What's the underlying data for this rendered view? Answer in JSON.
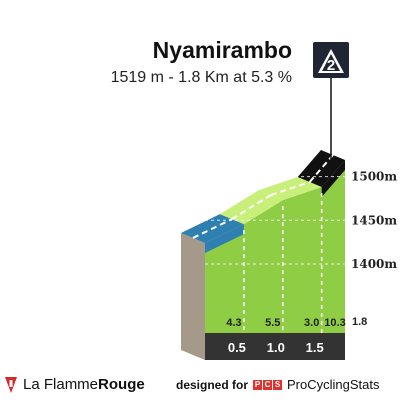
{
  "title": "Nyamirambo",
  "subtitle": "1519 m - 1.8 Km at 5.3 %",
  "badge": {
    "label": "2",
    "color": "#1f2533"
  },
  "colors": {
    "base": "#333333",
    "side": "#a59a8a",
    "top_face": "#c8ef7a",
    "front_green": "#8fcd45",
    "blue": "#2f7fb0",
    "black": "#111111"
  },
  "footer": {
    "brand_prefix": "La Flamme",
    "brand_suffix": "Rouge",
    "credit_label": "designed for",
    "pcs_letters": [
      "P",
      "C",
      "S"
    ],
    "pcs_name": "ProCyclingStats"
  },
  "chart_data": {
    "type": "area",
    "x": [
      0,
      0.5,
      1.0,
      1.5,
      1.8
    ],
    "y_ticks": [
      "1400m",
      "1450m",
      "1500m"
    ],
    "y_tick_values": [
      1400,
      1450,
      1500
    ],
    "ylim": [
      1350,
      1519
    ],
    "xlim": [
      0,
      1.8
    ],
    "segments": [
      {
        "from": 0.0,
        "to": 0.5,
        "gradient": 4.3,
        "label": "4.3",
        "color": "#2f7fb0"
      },
      {
        "from": 0.5,
        "to": 1.0,
        "gradient": 5.5,
        "label": "5.5",
        "color": "#8fcd45"
      },
      {
        "from": 1.0,
        "to": 1.5,
        "gradient": 3.0,
        "label": "3.0",
        "color": "#8fcd45"
      },
      {
        "from": 1.5,
        "to": 1.8,
        "gradient": 10.3,
        "label": "10.3",
        "color": "#111111"
      }
    ],
    "distance_labels": [
      "0.5",
      "1.0",
      "1.5",
      "1.8"
    ],
    "distance_values": [
      0.5,
      1.0,
      1.5,
      1.8
    ]
  }
}
